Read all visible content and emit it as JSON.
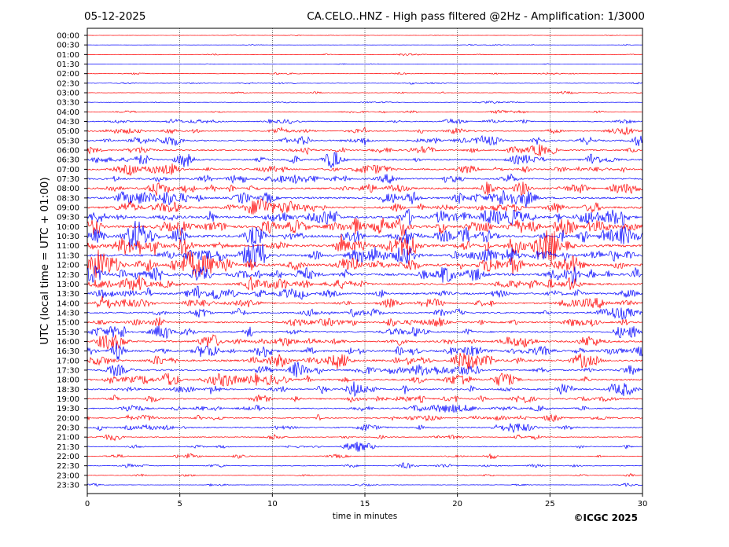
{
  "chart_data": {
    "type": "line",
    "date": "05-12-2025",
    "title": "CA.CELO..HNZ - High pass filtered @2Hz - Amplification: 1/3000",
    "xlabel": "time in minutes",
    "ylabel": "UTC (local time = UTC + 01:00)",
    "xlim": [
      0,
      30
    ],
    "x_ticks": [
      "0",
      "5",
      "10",
      "15",
      "20",
      "25",
      "30"
    ],
    "y_ticks": [
      "00:00",
      "00:30",
      "01:00",
      "01:30",
      "02:00",
      "02:30",
      "03:00",
      "03:30",
      "04:00",
      "04:30",
      "05:00",
      "05:30",
      "06:00",
      "06:30",
      "07:00",
      "07:30",
      "08:00",
      "08:30",
      "09:00",
      "09:30",
      "10:00",
      "10:30",
      "11:00",
      "11:30",
      "12:00",
      "12:30",
      "13:00",
      "13:30",
      "14:00",
      "14:30",
      "15:00",
      "15:30",
      "16:00",
      "16:30",
      "17:00",
      "17:30",
      "18:00",
      "18:30",
      "19:00",
      "19:30",
      "20:00",
      "20:30",
      "21:00",
      "21:30",
      "22:00",
      "22:30",
      "23:00",
      "23:30"
    ],
    "grid": "vertical dotted lines every 5 minutes",
    "trace_colors": [
      "#ff0000",
      "#0000ff"
    ],
    "trace_amplitude_by_row": [
      0.2,
      0.2,
      0.3,
      0.2,
      0.4,
      0.4,
      0.4,
      0.4,
      0.6,
      1.0,
      1.2,
      1.5,
      1.4,
      1.6,
      1.6,
      1.6,
      1.7,
      2.0,
      2.2,
      2.4,
      2.5,
      2.5,
      2.5,
      2.4,
      2.6,
      2.3,
      1.9,
      1.8,
      1.6,
      1.5,
      1.6,
      1.6,
      1.8,
      1.9,
      2.0,
      1.7,
      1.8,
      1.6,
      1.4,
      1.3,
      1.2,
      1.2,
      0.9,
      0.8,
      0.7,
      0.7,
      0.5,
      0.4
    ],
    "credit": "©ICGC 2025"
  }
}
